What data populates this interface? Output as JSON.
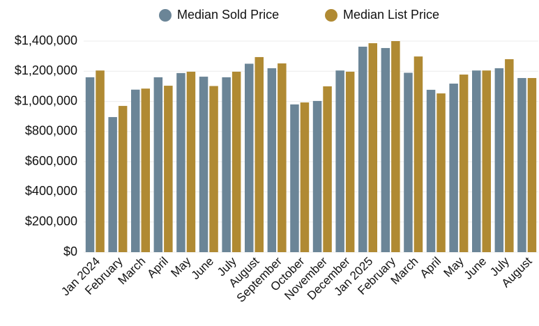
{
  "chart_data": {
    "type": "bar",
    "categories": [
      "Jan 2024",
      "February",
      "March",
      "April",
      "May",
      "June",
      "July",
      "August",
      "September",
      "October",
      "November",
      "December",
      "Jan 2025",
      "February",
      "March",
      "April",
      "May",
      "June",
      "July",
      "August"
    ],
    "series": [
      {
        "name": "Median Sold Price",
        "color": "#6b8597",
        "values": [
          1160000,
          896000,
          1078000,
          1160000,
          1188000,
          1164000,
          1160000,
          1250000,
          1220000,
          980000,
          1003000,
          1205000,
          1363000,
          1354000,
          1190000,
          1077000,
          1118000,
          1205000,
          1220000,
          1155000
        ]
      },
      {
        "name": "Median List Price",
        "color": "#b08a33",
        "values": [
          1205000,
          970000,
          1085000,
          1104000,
          1197000,
          1102000,
          1197000,
          1294000,
          1252000,
          993000,
          1100000,
          1197000,
          1386000,
          1400000,
          1298000,
          1053000,
          1178000,
          1205000,
          1280000,
          1155000
        ]
      }
    ],
    "ylim": [
      0,
      1400000
    ],
    "yticks": [
      {
        "value": 0,
        "label": "$0"
      },
      {
        "value": 200000,
        "label": "$200,000"
      },
      {
        "value": 400000,
        "label": "$400,000"
      },
      {
        "value": 600000,
        "label": "$600,000"
      },
      {
        "value": 800000,
        "label": "$800,000"
      },
      {
        "value": 1000000,
        "label": "$1,000,000"
      },
      {
        "value": 1200000,
        "label": "$1,200,000"
      },
      {
        "value": 1400000,
        "label": "$1,400,000"
      }
    ],
    "grid": true
  }
}
